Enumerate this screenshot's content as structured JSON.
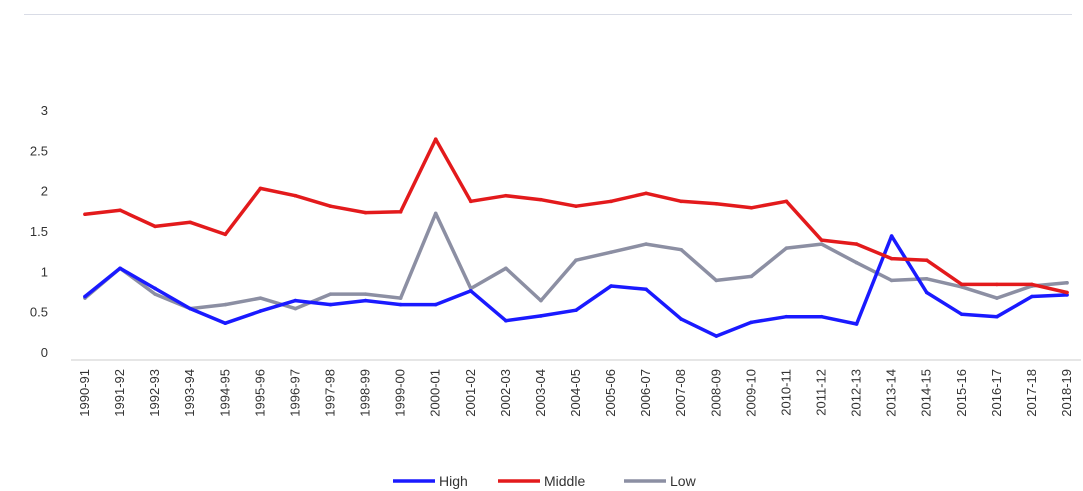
{
  "chart_data": {
    "type": "line",
    "title": "",
    "xlabel": "",
    "ylabel": "",
    "ylim": [
      0,
      3
    ],
    "yticks": [
      "0",
      "0.5",
      "1",
      "1.5",
      "2",
      "2.5",
      "3"
    ],
    "grid": false,
    "legend_position": "bottom",
    "categories": [
      "1990-91",
      "1991-92",
      "1992-93",
      "1993-94",
      "1994-95",
      "1995-96",
      "1996-97",
      "1997-98",
      "1998-99",
      "1999-00",
      "2000-01",
      "2001-02",
      "2002-03",
      "2003-04",
      "2004-05",
      "2005-06",
      "2006-07",
      "2007-08",
      "2008-09",
      "2009-10",
      "2010-11",
      "2011-12",
      "2012-13",
      "2013-14",
      "2014-15",
      "2015-16",
      "2016-17",
      "2017-18",
      "2018-19"
    ],
    "series": [
      {
        "name": "High",
        "color": "#1a1aff",
        "values": [
          0.7,
          1.05,
          0.8,
          0.55,
          0.37,
          0.52,
          0.65,
          0.6,
          0.65,
          0.6,
          0.6,
          0.77,
          0.4,
          0.46,
          0.53,
          0.83,
          0.79,
          0.42,
          0.21,
          0.38,
          0.45,
          0.45,
          0.36,
          1.45,
          0.75,
          0.48,
          0.45,
          0.7,
          0.72
        ]
      },
      {
        "name": "Middle",
        "color": "#e31a1c",
        "values": [
          1.72,
          1.77,
          1.57,
          1.62,
          1.47,
          2.04,
          1.95,
          1.82,
          1.74,
          1.75,
          2.65,
          1.88,
          1.95,
          1.9,
          1.82,
          1.88,
          1.98,
          1.88,
          1.85,
          1.8,
          1.88,
          1.4,
          1.35,
          1.17,
          1.15,
          0.85,
          0.85,
          0.85,
          0.75
        ]
      },
      {
        "name": "Low",
        "color": "#8c8fa3",
        "values": [
          0.68,
          1.05,
          0.73,
          0.55,
          0.6,
          0.68,
          0.55,
          0.73,
          0.73,
          0.68,
          1.73,
          0.8,
          1.05,
          0.65,
          1.15,
          1.25,
          1.35,
          1.28,
          0.9,
          0.95,
          1.3,
          1.35,
          1.12,
          0.9,
          0.92,
          0.82,
          0.68,
          0.83,
          0.87
        ]
      }
    ]
  }
}
